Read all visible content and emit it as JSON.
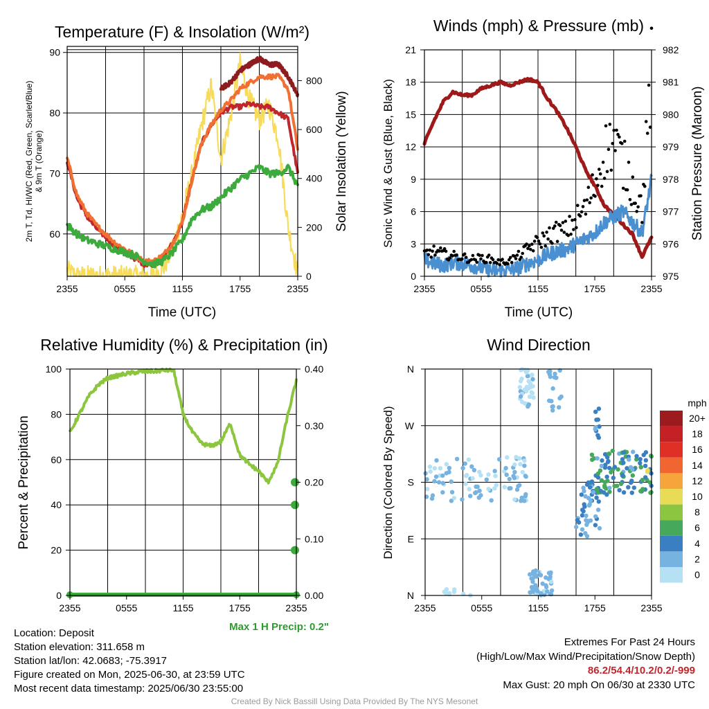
{
  "chart_data": [
    {
      "type": "line",
      "title": "Temperature (F) & Insolation (W/m²)",
      "xlabel": "Time (UTC)",
      "ylabel_lines": [
        "2m T, Td, HI/WC (Red, Green, Scarlet/Blue)",
        "& 9m T (Orange)"
      ],
      "y2label": "Solar Insolation (Yellow)",
      "x_ticks": [
        "2355",
        "0555",
        "1155",
        "1755",
        "2355"
      ],
      "y_ticks": [
        60,
        70,
        80,
        90
      ],
      "y2_ticks": [
        0,
        200,
        400,
        600,
        800
      ],
      "ylim": [
        53,
        91
      ],
      "y2lim": [
        0,
        940
      ],
      "series": [
        {
          "key": "T",
          "color": "#c0272d",
          "x": [
            0,
            1,
            2,
            3,
            4,
            5,
            6,
            7,
            8,
            9,
            10,
            11,
            12,
            13,
            14,
            15,
            16,
            17,
            18,
            19,
            20,
            21,
            22,
            23,
            24
          ],
          "values": [
            72,
            66,
            63,
            61,
            59.5,
            58,
            57,
            56,
            55,
            55,
            56,
            58.5,
            62,
            69,
            75,
            78,
            80,
            81,
            81,
            81.5,
            81,
            81,
            80,
            79,
            70
          ]
        },
        {
          "key": "9mT",
          "color": "#f07033",
          "x": [
            0,
            1,
            2,
            3,
            4,
            5,
            6,
            7,
            8,
            9,
            10,
            11,
            12,
            13,
            14,
            15,
            16,
            17,
            18,
            19,
            20,
            21,
            22,
            23,
            24
          ],
          "values": [
            72.5,
            66.5,
            63.5,
            61.5,
            60,
            58.5,
            57.5,
            56.5,
            55.5,
            55.5,
            56.5,
            58.5,
            62,
            69,
            75,
            78,
            80.5,
            82,
            84,
            85,
            86,
            86,
            86,
            84,
            74
          ]
        },
        {
          "key": "HI",
          "color": "#8e1b1f",
          "x": [
            16,
            17,
            18,
            19,
            20,
            21,
            22,
            23,
            24
          ],
          "values": [
            84,
            85,
            87,
            88,
            89,
            88,
            88,
            86,
            83
          ]
        },
        {
          "key": "Td",
          "color": "#3caa3c",
          "x": [
            0,
            1,
            2,
            3,
            4,
            5,
            6,
            7,
            8,
            9,
            10,
            11,
            12,
            13,
            14,
            15,
            16,
            17,
            18,
            19,
            20,
            21,
            22,
            23,
            24
          ],
          "values": [
            61.5,
            60,
            59,
            58.5,
            58,
            57.5,
            57,
            56.5,
            55.5,
            55,
            55.5,
            57,
            59,
            62.5,
            64,
            64.5,
            66,
            67.5,
            69,
            70,
            71,
            70,
            70,
            71,
            68
          ]
        },
        {
          "key": "SR",
          "axis": "y2",
          "color": "#f7dc5c",
          "x": [
            0,
            1,
            2,
            3,
            4,
            5,
            6,
            7,
            8,
            9,
            10,
            11,
            12,
            13,
            14,
            15,
            16,
            17,
            18,
            19,
            20,
            21,
            22,
            23,
            24
          ],
          "values": [
            20,
            0,
            0,
            0,
            0,
            0,
            0,
            0,
            0,
            0,
            30,
            120,
            250,
            420,
            620,
            780,
            480,
            650,
            870,
            720,
            640,
            700,
            560,
            200,
            10
          ]
        }
      ]
    },
    {
      "type": "line",
      "title": "Winds (mph) & Pressure (mb)",
      "xlabel": "Time (UTC)",
      "ylabel": "Sonic Wind & Gust (Blue, Black)",
      "y2label": "Station Pressure (Maroon)",
      "x_ticks": [
        "2355",
        "0555",
        "1155",
        "1755",
        "2355"
      ],
      "y_ticks": [
        0,
        3,
        6,
        9,
        12,
        15,
        18,
        21
      ],
      "y2_ticks": [
        975,
        976,
        977,
        978,
        979,
        980,
        981,
        982
      ],
      "ylim": [
        0,
        21
      ],
      "y2lim": [
        975,
        982
      ],
      "series": [
        {
          "key": "wind",
          "color": "#4a8fcf",
          "x": [
            0,
            1,
            2,
            3,
            4,
            5,
            6,
            7,
            8,
            9,
            10,
            11,
            12,
            13,
            14,
            15,
            16,
            17,
            18,
            19,
            20,
            21,
            22,
            23,
            24
          ],
          "values": [
            1.5,
            1.2,
            1,
            1.3,
            1.2,
            1,
            0.8,
            0.5,
            0.5,
            0.6,
            0.8,
            1.2,
            1.5,
            2,
            2.3,
            2.5,
            3,
            3.5,
            4,
            5,
            5.5,
            6,
            5,
            4,
            9
          ]
        },
        {
          "key": "gust",
          "color": "#000000",
          "x": [
            0,
            1,
            2,
            3,
            4,
            5,
            6,
            7,
            8,
            9,
            10,
            11,
            12,
            13,
            14,
            15,
            16,
            17,
            18,
            19,
            20,
            21,
            22,
            23,
            24
          ],
          "values": [
            2,
            2.2,
            2,
            1.8,
            1.7,
            1.5,
            1.6,
            1.5,
            1.2,
            1.4,
            1.8,
            2.5,
            3,
            3.5,
            4,
            4,
            5,
            6,
            8,
            11,
            12,
            10,
            8,
            6,
            18
          ]
        },
        {
          "key": "pres",
          "axis": "y2",
          "color": "#9e1a1a",
          "x": [
            0,
            1,
            2,
            3,
            4,
            5,
            6,
            7,
            8,
            9,
            10,
            11,
            12,
            13,
            14,
            15,
            16,
            17,
            18,
            19,
            20,
            21,
            22,
            23,
            24
          ],
          "values": [
            979.1,
            979.8,
            980.4,
            980.7,
            980.6,
            980.6,
            980.8,
            980.9,
            981,
            980.9,
            981,
            981.1,
            981,
            980.5,
            980.1,
            979.6,
            979,
            978.3,
            977.8,
            977.2,
            976.9,
            976.6,
            976.3,
            975.6,
            976.2
          ]
        }
      ]
    },
    {
      "type": "line",
      "title": "Relative Humidity (%) & Precipitation (in)",
      "ylabel": "Percent & Precipitation",
      "x_ticks": [
        "2355",
        "0555",
        "1155",
        "1755",
        "2355"
      ],
      "y_ticks": [
        0,
        20,
        40,
        60,
        80,
        100
      ],
      "y2_ticks": [
        "0.00",
        "0.10",
        "0.20",
        "0.30",
        "0.40"
      ],
      "ylim": [
        0,
        100
      ],
      "y2lim": [
        0,
        0.4
      ],
      "annotation": "Max 1 H Precip: 0.2\"",
      "series": [
        {
          "key": "rh",
          "color": "#8cc63f",
          "x": [
            0,
            1,
            2,
            3,
            4,
            5,
            6,
            7,
            8,
            9,
            10,
            11,
            12,
            13,
            14,
            15,
            16,
            17,
            18,
            19,
            20,
            21,
            22,
            23,
            24
          ],
          "values": [
            72,
            80,
            88,
            93,
            96,
            97,
            98,
            98.5,
            99,
            99,
            99.5,
            99.5,
            80,
            72,
            67,
            66,
            68,
            76,
            62,
            58,
            55,
            50,
            58,
            78,
            95
          ]
        },
        {
          "key": "precip",
          "color": "#3caa3c",
          "x": [
            0,
            24
          ],
          "values": [
            0,
            0
          ]
        }
      ],
      "precip_points": [
        0.08,
        0.16,
        0.2
      ]
    },
    {
      "type": "scatter",
      "title": "Wind Direction",
      "ylabel": "Direction (Colored By Speed)",
      "x_ticks": [
        "2355",
        "0555",
        "1155",
        "1755",
        "2355"
      ],
      "y_ticks": [
        "N",
        "E",
        "S",
        "W",
        "N"
      ],
      "ylim": [
        0,
        360
      ],
      "colorbar_title": "mph",
      "colorbar_labels": [
        "20+",
        "18",
        "16",
        "14",
        "12",
        "10",
        "8",
        "6",
        "4",
        "2",
        "0"
      ],
      "colorbar_colors": [
        "#9b1b1e",
        "#c42026",
        "#e03026",
        "#f06530",
        "#f6a53c",
        "#e8dc57",
        "#8cc641",
        "#46a85b",
        "#3a7fc1",
        "#77b3e0",
        "#b6e0f4"
      ]
    }
  ],
  "info_lines": [
    "Location: Deposit",
    "Station elevation: 311.658 m",
    "Station lat/lon: 42.0683; -75.3917",
    "Figure created on Mon, 2025-06-30, at 23:59 UTC",
    "Most recent data timestamp: 2025/06/30 23:55:00"
  ],
  "extremes": {
    "title": "Extremes For Past 24 Hours",
    "subtitle": "(High/Low/Max Wind/Precipitation/Snow Depth)",
    "values": "86.2/54.4/10.2/0.2/-999",
    "gust": "Max Gust: 20 mph On 06/30 at 2330 UTC"
  },
  "credit": "Created By Nick Bassill Using Data Provided By The NYS Mesonet"
}
